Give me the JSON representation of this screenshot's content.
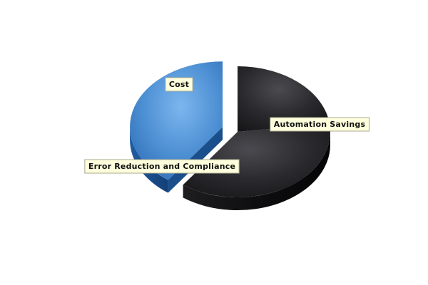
{
  "chart_data": {
    "type": "pie",
    "three_d": true,
    "title": "",
    "slices": [
      {
        "label": "Cost",
        "value": 23,
        "color": "#2b2b2e",
        "exploded": false
      },
      {
        "label": "Error Reduction and Compliance",
        "value": 37,
        "color": "#2b2b2e",
        "exploded": false
      },
      {
        "label": "Automation Savings",
        "value": 40,
        "color": "#4a90d9",
        "exploded": true
      }
    ],
    "legend": "none",
    "label_background": "#ffffdd"
  }
}
